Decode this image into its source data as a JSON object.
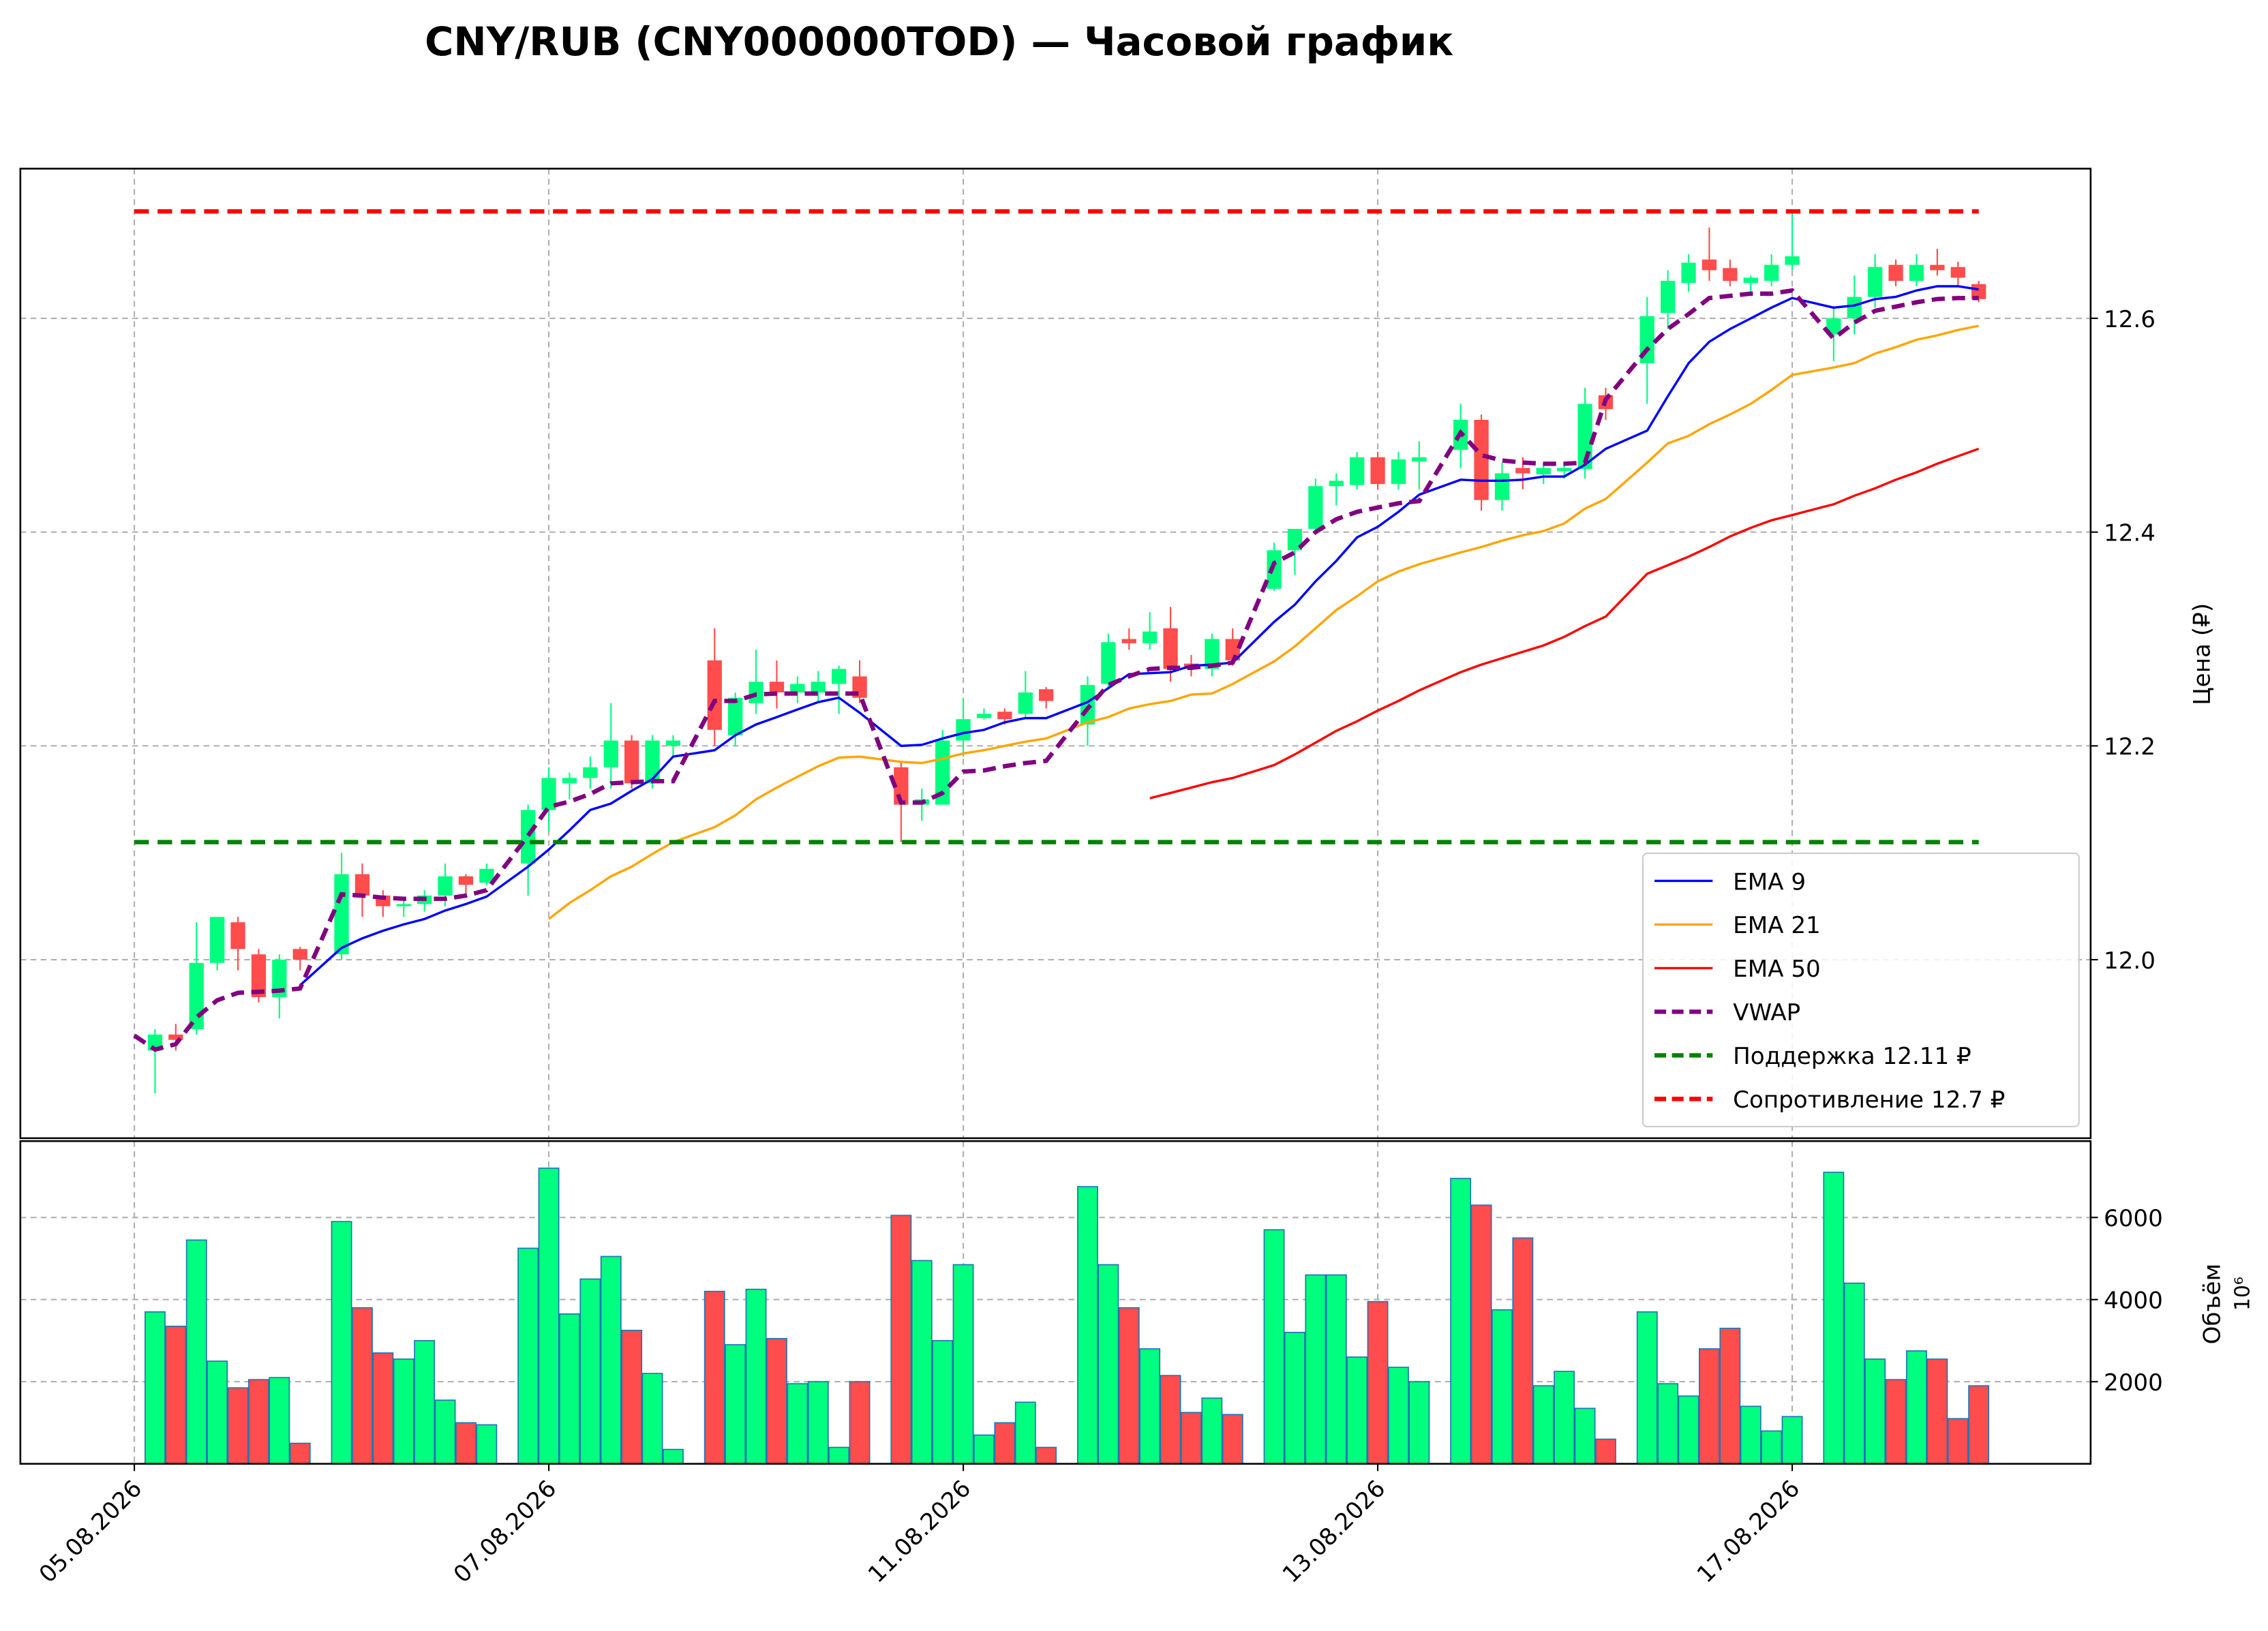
{
  "chart_data": [
    {
      "type": "candlestick",
      "title": "CNY/RUB (CNY000000TOD) — Часовой график",
      "ylabel": "Цена (₽)",
      "x": [
        1,
        2,
        3,
        4,
        5,
        6,
        7,
        8,
        10,
        11,
        12,
        13,
        14,
        15,
        16,
        17,
        19,
        20,
        21,
        22,
        23,
        24,
        25,
        26,
        28,
        29,
        30,
        31,
        32,
        33,
        34,
        35,
        37,
        38,
        39,
        40,
        41,
        42,
        43,
        44,
        46,
        47,
        48,
        49,
        50,
        51,
        52,
        53,
        55,
        56,
        57,
        58,
        59,
        60,
        61,
        62,
        64,
        65,
        66,
        67,
        68,
        69,
        70,
        71,
        73,
        74,
        75,
        76,
        77,
        78,
        79,
        80,
        82,
        83,
        84,
        85,
        86,
        87,
        88,
        89
      ],
      "open": [
        11.915,
        11.93,
        11.935,
        11.997,
        12.035,
        12.005,
        11.965,
        12.01,
        12.005,
        12.08,
        12.06,
        12.05,
        12.052,
        12.06,
        12.078,
        12.072,
        12.09,
        12.14,
        12.165,
        12.17,
        12.18,
        12.205,
        12.165,
        12.2,
        12.28,
        12.21,
        12.24,
        12.26,
        12.25,
        12.25,
        12.258,
        12.265,
        12.18,
        12.145,
        12.145,
        12.205,
        12.226,
        12.232,
        12.23,
        12.253,
        12.22,
        12.258,
        12.3,
        12.296,
        12.31,
        12.277,
        12.272,
        12.3,
        12.347,
        12.383,
        12.403,
        12.443,
        12.444,
        12.47,
        12.445,
        12.466,
        12.477,
        12.505,
        12.43,
        12.46,
        12.454,
        12.457,
        12.459,
        12.528,
        12.558,
        12.605,
        12.633,
        12.655,
        12.647,
        12.633,
        12.635,
        12.65,
        12.585,
        12.6,
        12.62,
        12.65,
        12.635,
        12.65,
        12.648,
        12.632
      ],
      "high": [
        11.935,
        11.94,
        12.035,
        12.04,
        12.04,
        12.01,
        12.005,
        12.012,
        12.1,
        12.09,
        12.065,
        12.055,
        12.065,
        12.09,
        12.08,
        12.09,
        12.145,
        12.18,
        12.175,
        12.19,
        12.24,
        12.21,
        12.21,
        12.21,
        12.31,
        12.25,
        12.29,
        12.28,
        12.265,
        12.27,
        12.275,
        12.28,
        12.185,
        12.16,
        12.215,
        12.245,
        12.235,
        12.235,
        12.27,
        12.255,
        12.265,
        12.305,
        12.31,
        12.325,
        12.33,
        12.285,
        12.305,
        12.31,
        12.39,
        12.4,
        12.45,
        12.455,
        12.475,
        12.475,
        12.475,
        12.485,
        12.52,
        12.51,
        12.465,
        12.47,
        12.465,
        12.465,
        12.535,
        12.535,
        12.62,
        12.645,
        12.66,
        12.685,
        12.655,
        12.64,
        12.66,
        12.7,
        12.61,
        12.64,
        12.66,
        12.655,
        12.66,
        12.665,
        12.653,
        12.635
      ],
      "low": [
        11.875,
        11.915,
        11.93,
        11.99,
        11.99,
        11.96,
        11.945,
        11.99,
        12.0,
        12.04,
        12.04,
        12.04,
        12.045,
        12.05,
        12.06,
        12.07,
        12.06,
        12.12,
        12.15,
        12.16,
        12.16,
        12.16,
        12.16,
        12.19,
        12.2,
        12.2,
        12.23,
        12.235,
        12.24,
        12.24,
        12.23,
        12.24,
        12.11,
        12.13,
        12.145,
        12.19,
        12.225,
        12.22,
        12.225,
        12.235,
        12.2,
        12.255,
        12.29,
        12.29,
        12.26,
        12.265,
        12.265,
        12.275,
        12.345,
        12.36,
        12.4,
        12.425,
        12.44,
        12.44,
        12.44,
        12.44,
        12.46,
        12.42,
        12.42,
        12.44,
        12.445,
        12.45,
        12.45,
        12.505,
        12.52,
        12.59,
        12.625,
        12.635,
        12.63,
        12.625,
        12.63,
        12.645,
        12.56,
        12.585,
        12.61,
        12.63,
        12.63,
        12.64,
        12.63,
        12.615
      ],
      "close": [
        11.93,
        11.925,
        11.997,
        12.04,
        12.01,
        11.965,
        12.0,
        12.0,
        12.08,
        12.06,
        12.05,
        12.052,
        12.06,
        12.078,
        12.07,
        12.085,
        12.14,
        12.17,
        12.17,
        12.18,
        12.205,
        12.165,
        12.205,
        12.205,
        12.215,
        12.245,
        12.26,
        12.25,
        12.258,
        12.26,
        12.272,
        12.245,
        12.145,
        12.15,
        12.205,
        12.225,
        12.23,
        12.225,
        12.25,
        12.242,
        12.257,
        12.297,
        12.296,
        12.307,
        12.272,
        12.272,
        12.3,
        12.28,
        12.383,
        12.403,
        12.443,
        12.448,
        12.47,
        12.445,
        12.468,
        12.47,
        12.505,
        12.43,
        12.455,
        12.455,
        12.46,
        12.46,
        12.52,
        12.515,
        12.602,
        12.635,
        12.652,
        12.645,
        12.635,
        12.638,
        12.65,
        12.658,
        12.6,
        12.62,
        12.648,
        12.635,
        12.65,
        12.645,
        12.638,
        12.618
      ],
      "up_color": "#00ff7f",
      "down_color": "#ff4c4c",
      "xlim": [
        -5.5,
        94.4
      ],
      "ylim": [
        11.833,
        12.74
      ],
      "yticks": [
        {
          "value": 12,
          "label": "12.0"
        },
        12.2,
        12.4,
        12.6
      ],
      "grid": true,
      "legend": "lower right",
      "lines": [
        {
          "name": "EMA 9",
          "color": "#0000ff",
          "dash": false,
          "x": [
            8,
            10,
            11,
            12,
            13,
            14,
            15,
            16,
            17,
            19,
            20,
            21,
            22,
            23,
            24,
            25,
            26,
            28,
            29,
            30,
            31,
            32,
            33,
            34,
            35,
            37,
            38,
            39,
            40,
            41,
            42,
            43,
            44,
            46,
            47,
            48,
            49,
            50,
            51,
            52,
            53,
            55,
            56,
            57,
            58,
            59,
            60,
            61,
            62,
            64,
            65,
            66,
            67,
            68,
            69,
            70,
            71,
            73,
            74,
            75,
            76,
            77,
            78,
            79,
            80,
            82,
            83,
            84,
            85,
            86,
            87,
            88,
            89
          ],
          "values": [
            11.976,
            12.011,
            12.02,
            12.027,
            12.033,
            12.038,
            12.046,
            12.052,
            12.059,
            12.087,
            12.103,
            12.121,
            12.14,
            12.146,
            12.158,
            12.169,
            12.19,
            12.196,
            12.21,
            12.22,
            12.227,
            12.234,
            12.241,
            12.245,
            12.231,
            12.2,
            12.201,
            12.207,
            12.212,
            12.215,
            12.222,
            12.226,
            12.226,
            12.241,
            12.254,
            12.267,
            12.268,
            12.269,
            12.275,
            12.276,
            12.278,
            12.316,
            12.332,
            12.354,
            12.373,
            12.395,
            12.405,
            12.419,
            12.435,
            12.449,
            12.448,
            12.448,
            12.449,
            12.452,
            12.452,
            12.463,
            12.478,
            12.495,
            12.527,
            12.558,
            12.578,
            12.59,
            12.6,
            12.61,
            12.619,
            12.61,
            12.612,
            12.618,
            12.62,
            12.626,
            12.63,
            12.63,
            12.627
          ]
        },
        {
          "name": "EMA 21",
          "color": "#ffa500",
          "dash": false,
          "x": [
            20,
            21,
            22,
            23,
            24,
            25,
            26,
            28,
            29,
            30,
            31,
            32,
            33,
            34,
            35,
            37,
            38,
            39,
            40,
            41,
            42,
            43,
            44,
            46,
            47,
            48,
            49,
            50,
            51,
            52,
            53,
            55,
            56,
            57,
            58,
            59,
            60,
            61,
            62,
            64,
            65,
            66,
            67,
            68,
            69,
            70,
            71,
            73,
            74,
            75,
            76,
            77,
            78,
            79,
            80,
            82,
            83,
            84,
            85,
            86,
            87,
            88,
            89
          ],
          "values": [
            12.038,
            12.053,
            12.065,
            12.078,
            12.087,
            12.099,
            12.11,
            12.124,
            12.135,
            12.15,
            12.161,
            12.171,
            12.181,
            12.189,
            12.19,
            12.185,
            12.184,
            12.188,
            12.193,
            12.196,
            12.2,
            12.204,
            12.207,
            12.222,
            12.227,
            12.235,
            12.239,
            12.242,
            12.248,
            12.249,
            12.258,
            12.279,
            12.293,
            12.31,
            12.327,
            12.34,
            12.354,
            12.363,
            12.37,
            12.381,
            12.386,
            12.392,
            12.397,
            12.401,
            12.408,
            12.422,
            12.431,
            12.465,
            12.483,
            12.49,
            12.501,
            12.51,
            12.52,
            12.533,
            12.547,
            12.554,
            12.558,
            12.567,
            12.573,
            12.58,
            12.584,
            12.589,
            12.593
          ]
        },
        {
          "name": "EMA 50",
          "color": "#ff0000",
          "dash": false,
          "x": [
            49,
            50,
            51,
            52,
            53,
            55,
            56,
            57,
            58,
            59,
            60,
            61,
            62,
            64,
            65,
            66,
            67,
            68,
            69,
            70,
            71,
            73,
            74,
            75,
            76,
            77,
            78,
            79,
            80,
            82,
            83,
            84,
            85,
            86,
            87,
            88,
            89
          ],
          "values": [
            12.151,
            12.156,
            12.161,
            12.166,
            12.17,
            12.182,
            12.192,
            12.203,
            12.214,
            12.223,
            12.233,
            12.242,
            12.252,
            12.269,
            12.276,
            12.282,
            12.288,
            12.294,
            12.302,
            12.312,
            12.321,
            12.361,
            12.369,
            12.377,
            12.386,
            12.396,
            12.404,
            12.411,
            12.416,
            12.426,
            12.434,
            12.441,
            12.449,
            12.456,
            12.464,
            12.471,
            12.478
          ]
        },
        {
          "name": "VWAP",
          "color": "#800080",
          "dash": true,
          "x": [
            0,
            1,
            2,
            3,
            4,
            5,
            6,
            7,
            8,
            10,
            11,
            12,
            13,
            14,
            15,
            16,
            17,
            19,
            20,
            21,
            22,
            23,
            24,
            25,
            26,
            28,
            29,
            30,
            31,
            32,
            33,
            34,
            35,
            37,
            38,
            39,
            40,
            41,
            42,
            43,
            44,
            46,
            47,
            48,
            49,
            50,
            51,
            52,
            53,
            55,
            56,
            57,
            58,
            59,
            60,
            61,
            62,
            64,
            65,
            66,
            67,
            68,
            69,
            70,
            71,
            73,
            74,
            75,
            76,
            77,
            78,
            79,
            80,
            82,
            83,
            84,
            85,
            86,
            87,
            88,
            89
          ],
          "values": [
            11.929,
            11.916,
            11.921,
            11.946,
            11.962,
            11.969,
            11.97,
            11.971,
            11.973,
            12.061,
            12.06,
            12.058,
            12.057,
            12.057,
            12.057,
            12.06,
            12.065,
            12.116,
            12.143,
            12.148,
            12.155,
            12.165,
            12.166,
            12.167,
            12.167,
            12.242,
            12.242,
            12.248,
            12.249,
            12.249,
            12.249,
            12.249,
            12.249,
            12.147,
            12.147,
            12.156,
            12.176,
            12.177,
            12.181,
            12.184,
            12.186,
            12.235,
            12.257,
            12.265,
            12.272,
            12.273,
            12.273,
            12.275,
            12.278,
            12.371,
            12.381,
            12.4,
            12.412,
            12.419,
            12.423,
            12.427,
            12.429,
            12.493,
            12.472,
            12.467,
            12.465,
            12.464,
            12.464,
            12.465,
            12.524,
            12.571,
            12.59,
            12.604,
            12.619,
            12.621,
            12.623,
            12.623,
            12.626,
            12.581,
            12.596,
            12.607,
            12.611,
            12.615,
            12.618,
            12.619,
            12.619
          ]
        }
      ],
      "hlines": [
        {
          "name": "Поддержка 12.11 ₽",
          "color": "#008000",
          "value": 12.11
        },
        {
          "name": "Сопротивление 12.7 ₽",
          "color": "#ff0000",
          "value": 12.7
        }
      ]
    },
    {
      "type": "bar",
      "ylabel": "Объём",
      "offset_label": "10⁶",
      "edge_color": "#1f77b4",
      "x": [
        1,
        2,
        3,
        4,
        5,
        6,
        7,
        8,
        10,
        11,
        12,
        13,
        14,
        15,
        16,
        17,
        19,
        20,
        21,
        22,
        23,
        24,
        25,
        26,
        28,
        29,
        30,
        31,
        32,
        33,
        34,
        35,
        37,
        38,
        39,
        40,
        41,
        42,
        43,
        44,
        46,
        47,
        48,
        49,
        50,
        51,
        52,
        53,
        55,
        56,
        57,
        58,
        59,
        60,
        61,
        62,
        64,
        65,
        66,
        67,
        68,
        69,
        70,
        71,
        73,
        74,
        75,
        76,
        77,
        78,
        79,
        80,
        82,
        83,
        84,
        85,
        86,
        87,
        88,
        89
      ],
      "values": [
        3700,
        3350,
        5450,
        2500,
        1850,
        2050,
        2100,
        500,
        5900,
        3800,
        2700,
        2550,
        3000,
        1550,
        1000,
        950,
        5250,
        7200,
        3650,
        4500,
        5050,
        3250,
        2200,
        350,
        4200,
        2900,
        4250,
        3050,
        1950,
        2000,
        400,
        2000,
        6050,
        4950,
        3000,
        4850,
        700,
        1000,
        1500,
        400,
        6750,
        4850,
        3800,
        2800,
        2150,
        1250,
        1600,
        1200,
        5700,
        3200,
        4600,
        4600,
        2600,
        3950,
        2350,
        2000,
        6950,
        6300,
        3750,
        5500,
        1900,
        2250,
        1350,
        600,
        3700,
        1950,
        1650,
        2800,
        3300,
        1400,
        800,
        1150,
        7100,
        4400,
        2550,
        2050,
        2750,
        2550,
        1100,
        1900
      ],
      "xlim": [
        -5.5,
        94.4
      ],
      "ylim": [
        0,
        7860
      ],
      "yticks": [
        2000,
        4000,
        6000
      ],
      "grid": true,
      "xticks": [
        {
          "value": 0,
          "label": "05.08.2026"
        },
        {
          "value": 20,
          "label": "07.08.2026"
        },
        {
          "value": 40,
          "label": "11.08.2026"
        },
        {
          "value": 60,
          "label": "13.08.2026"
        },
        {
          "value": 80,
          "label": "17.08.2026"
        }
      ]
    }
  ]
}
